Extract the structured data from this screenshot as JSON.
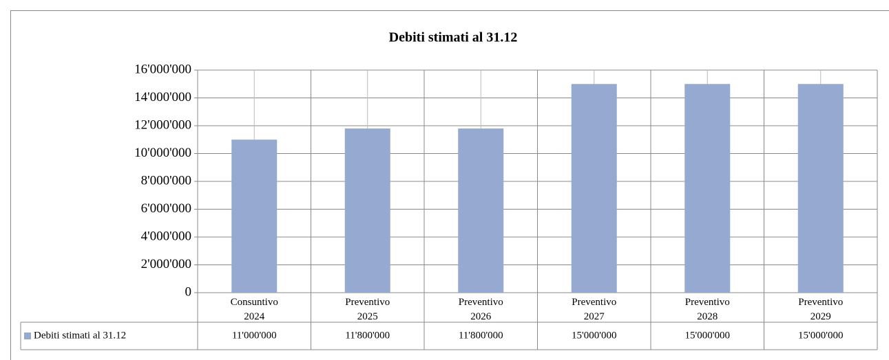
{
  "chart_data": {
    "type": "bar",
    "title": "Debiti stimati al 31.12",
    "categories": [
      "Consuntivo\n2024",
      "Preventivo\n2025",
      "Preventivo\n2026",
      "Preventivo\n2027",
      "Preventivo\n2028",
      "Preventivo\n2029"
    ],
    "series": [
      {
        "name": "Debiti stimati al 31.12",
        "color": "#95a9d1",
        "values": [
          11000000,
          11800000,
          11800000,
          15000000,
          15000000,
          15000000
        ],
        "value_labels": [
          "11'000'000",
          "11'800'000",
          "11'800'000",
          "15'000'000",
          "15'000'000",
          "15'000'000"
        ]
      }
    ],
    "ylim": [
      0,
      16000000
    ],
    "yticks": [
      0,
      {
        "value": 2000000,
        "label": "2'000'000"
      },
      {
        "value": 4000000,
        "label": "4'000'000"
      },
      {
        "value": 6000000,
        "label": "6'000'000"
      },
      {
        "value": 8000000,
        "label": "8'000'000"
      },
      {
        "value": 10000000,
        "label": "10'000'000"
      },
      {
        "value": 12000000,
        "label": "12'000'000"
      },
      {
        "value": 14000000,
        "label": "14'000'000"
      },
      {
        "value": 16000000,
        "label": "16'000'000"
      }
    ],
    "grid": true
  }
}
